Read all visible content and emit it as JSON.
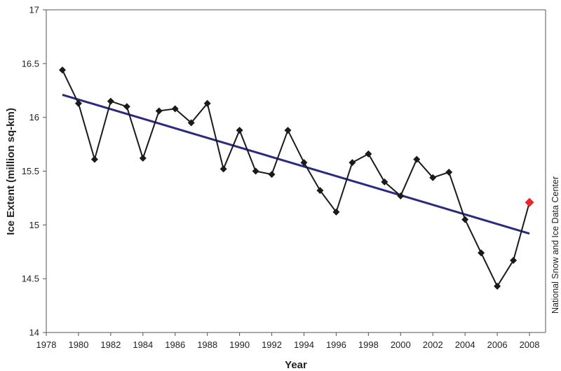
{
  "chart_data": {
    "type": "line",
    "xlabel": "Year",
    "ylabel": "Ice Extent (million sq-km)",
    "source_note": "National Snow and Ice Data Center",
    "xlim": [
      1978,
      2009
    ],
    "ylim": [
      14,
      17
    ],
    "x_ticks": [
      1978,
      1980,
      1982,
      1984,
      1986,
      1988,
      1990,
      1992,
      1994,
      1996,
      1998,
      2000,
      2002,
      2004,
      2006,
      2008
    ],
    "y_ticks": [
      14,
      14.5,
      15,
      15.5,
      16,
      16.5,
      17
    ],
    "y_tick_labels": [
      "14",
      "14.5",
      "15",
      "15.5",
      "16",
      "16.5",
      "17"
    ],
    "grid": false,
    "series": [
      {
        "color": "#1a1a1a",
        "marker": "diamond",
        "x": [
          1979,
          1980,
          1981,
          1982,
          1983,
          1984,
          1985,
          1986,
          1987,
          1988,
          1989,
          1990,
          1991,
          1992,
          1993,
          1994,
          1995,
          1996,
          1997,
          1998,
          1999,
          2000,
          2001,
          2002,
          2003,
          2004,
          2005,
          2006,
          2007,
          2008
        ],
        "y": [
          16.44,
          16.13,
          15.61,
          16.15,
          16.1,
          15.62,
          16.06,
          16.08,
          15.95,
          16.13,
          15.52,
          15.88,
          15.5,
          15.47,
          15.88,
          15.58,
          15.32,
          15.12,
          15.58,
          15.66,
          15.4,
          15.27,
          15.61,
          15.44,
          15.49,
          15.05,
          14.74,
          14.43,
          14.67,
          15.21
        ]
      }
    ],
    "highlight_point": {
      "x": 2008,
      "y": 15.21,
      "color": "#e8262b"
    },
    "trend_line": {
      "x": [
        1979,
        2008
      ],
      "y": [
        16.21,
        14.92
      ],
      "color": "#2a2a7e"
    },
    "axis_color": "#555555"
  }
}
